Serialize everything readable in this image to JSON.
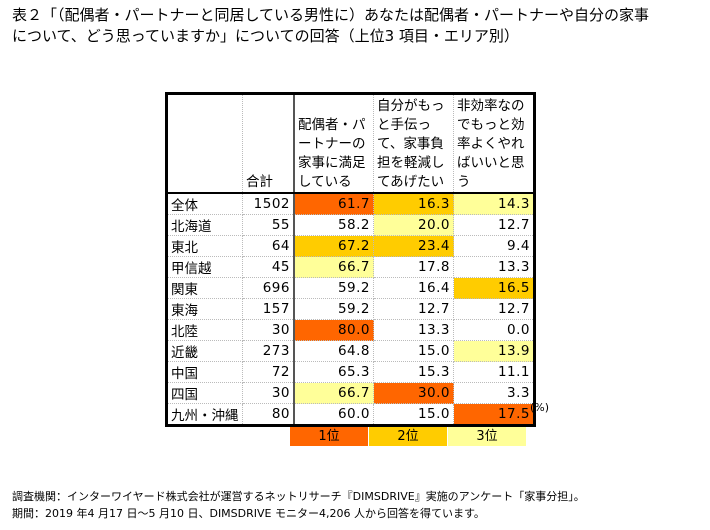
{
  "title_line1": "表２「（配偶者・パートナーと同居している男性に）あなたは配偶者・パートナーや自分の家事",
  "title_line2": "について、どう思っていますか」についての回答（上位3 項目・エリア別）",
  "headers": [
    "",
    "合計",
    "配偶者・パートナーの家事に満足している",
    "自分がもっと手伝って、家事負担を軽減してあげたい",
    "非効率なのでもっと効率よくやればいいと思う"
  ],
  "rows": [
    {
      "label": "全体",
      "total": "1502",
      "values": [
        "61.7",
        "16.3",
        "14.3"
      ],
      "ranks": [
        1,
        2,
        3
      ]
    },
    {
      "label": "北海道",
      "total": "55",
      "values": [
        "58.2",
        "20.0",
        "12.7"
      ],
      "ranks": [
        0,
        3,
        0
      ]
    },
    {
      "label": "東北",
      "total": "64",
      "values": [
        "67.2",
        "23.4",
        "9.4"
      ],
      "ranks": [
        2,
        2,
        0
      ]
    },
    {
      "label": "甲信越",
      "total": "45",
      "values": [
        "66.7",
        "17.8",
        "13.3"
      ],
      "ranks": [
        3,
        0,
        0
      ]
    },
    {
      "label": "関東",
      "total": "696",
      "values": [
        "59.2",
        "16.4",
        "16.5"
      ],
      "ranks": [
        0,
        0,
        2
      ]
    },
    {
      "label": "東海",
      "total": "157",
      "values": [
        "59.2",
        "12.7",
        "12.7"
      ],
      "ranks": [
        0,
        0,
        0
      ]
    },
    {
      "label": "北陸",
      "total": "30",
      "values": [
        "80.0",
        "13.3",
        "0.0"
      ],
      "ranks": [
        1,
        0,
        0
      ]
    },
    {
      "label": "近畿",
      "total": "273",
      "values": [
        "64.8",
        "15.0",
        "13.9"
      ],
      "ranks": [
        0,
        0,
        3
      ]
    },
    {
      "label": "中国",
      "total": "72",
      "values": [
        "65.3",
        "15.3",
        "11.1"
      ],
      "ranks": [
        0,
        0,
        0
      ]
    },
    {
      "label": "四国",
      "total": "30",
      "values": [
        "66.7",
        "30.0",
        "3.3"
      ],
      "ranks": [
        3,
        1,
        0
      ]
    },
    {
      "label": "九州・沖縄",
      "total": "80",
      "values": [
        "60.0",
        "15.0",
        "17.5"
      ],
      "ranks": [
        0,
        0,
        1
      ]
    }
  ],
  "unit": "(%)",
  "legend": [
    "1位",
    "2位",
    "3位"
  ],
  "colors": {
    "rank1": "#ff6600",
    "rank2": "#ffcc00",
    "rank3": "#ffff99"
  },
  "footer_line1": "調査機関：インターワイヤード株式会社が運営するネットリサーチ『DIMSDRIVE』実施のアンケート「家事分担」。",
  "footer_line2": "期間：2019 年4 月17 日～5 月10 日、DIMSDRIVE モニター4,206 人から回答を得ています。"
}
